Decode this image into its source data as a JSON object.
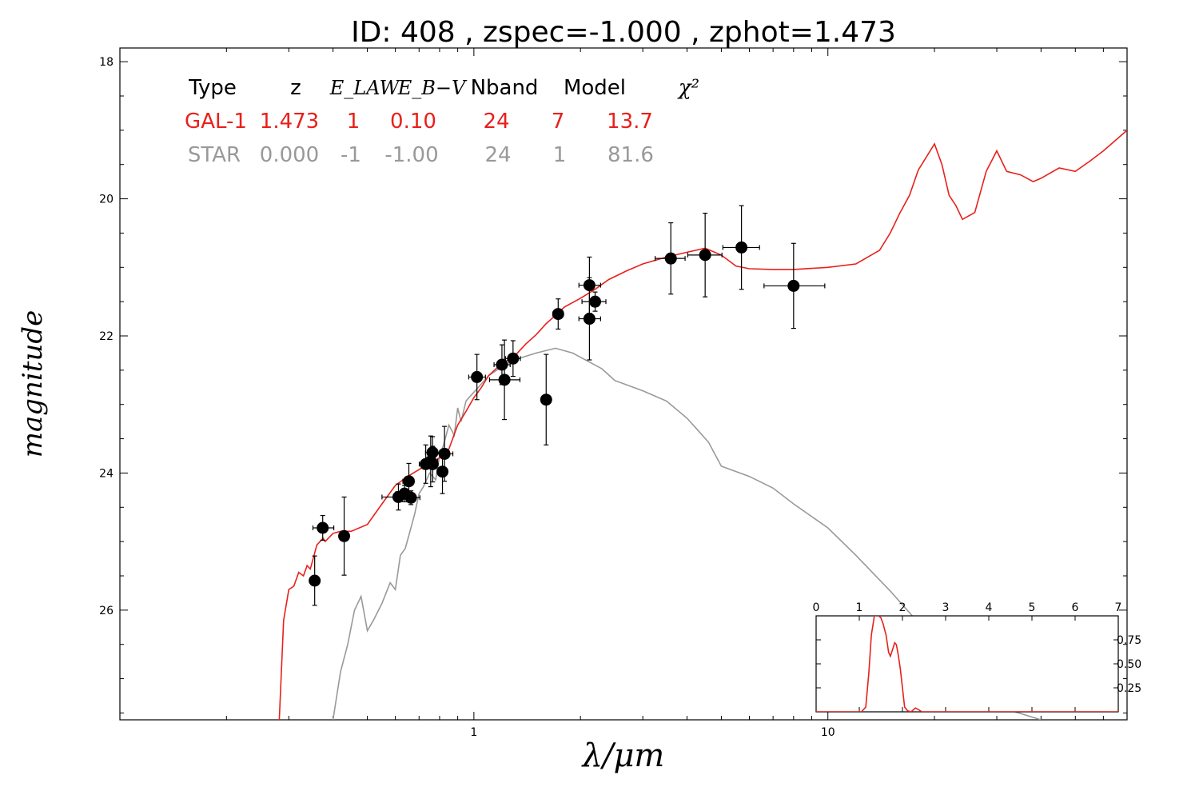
{
  "chart_data": {
    "type": "scatter",
    "title": "ID:  408   , zspec=-1.000 , zphot=1.473",
    "xlabel": "λ/μm",
    "ylabel": "magnitude",
    "x_scale": "log",
    "xlim": [
      0.1,
      70
    ],
    "ylim": [
      27.6,
      17.8
    ],
    "y_inverted": true,
    "x_ticks": [
      1,
      10
    ],
    "x_tick_labels": [
      "1",
      "10"
    ],
    "y_ticks": [
      18,
      20,
      22,
      24,
      26
    ],
    "y_tick_labels": [
      "18",
      "20",
      "22",
      "24",
      "26"
    ],
    "legend_table": {
      "headers": [
        "Type",
        "z",
        "E_LAW",
        "E_B−V",
        "Nband",
        "Model",
        "χ²"
      ],
      "rows": [
        {
          "type": "GAL-1",
          "z": "1.473",
          "elaw": "1",
          "ebv": "0.10",
          "nband": "24",
          "model": "7",
          "chi2": "13.7",
          "color": "#e8201b"
        },
        {
          "type": "STAR",
          "z": "0.000",
          "elaw": "-1",
          "ebv": "-1.00",
          "nband": "24",
          "model": "1",
          "chi2": "81.6",
          "color": "#999999"
        }
      ]
    },
    "points": [
      {
        "x": 0.355,
        "y": 25.57,
        "xerr_lo": 0.01,
        "xerr_hi": 0.01,
        "yerr": 0.36
      },
      {
        "x": 0.374,
        "y": 24.8,
        "xerr_lo": 0.023,
        "xerr_hi": 0.028,
        "yerr": 0.18
      },
      {
        "x": 0.43,
        "y": 24.92,
        "xerr_lo": 0.003,
        "xerr_hi": 0.003,
        "yerr": 0.57
      },
      {
        "x": 0.612,
        "y": 24.35,
        "xerr_lo": 0.062,
        "xerr_hi": 0.027,
        "yerr": 0.19
      },
      {
        "x": 0.637,
        "y": 24.3,
        "xerr_lo": 0.035,
        "xerr_hi": 0.03,
        "yerr": 0.12
      },
      {
        "x": 0.655,
        "y": 24.12,
        "xerr_lo": 0.025,
        "xerr_hi": 0.02,
        "yerr": 0.26
      },
      {
        "x": 0.664,
        "y": 24.36,
        "xerr_lo": 0.041,
        "xerr_hi": 0.04,
        "yerr": 0.1
      },
      {
        "x": 0.731,
        "y": 23.87,
        "xerr_lo": 0.03,
        "xerr_hi": 0.031,
        "yerr": 0.28
      },
      {
        "x": 0.755,
        "y": 23.83,
        "xerr_lo": 0.035,
        "xerr_hi": 0.035,
        "yerr": 0.37
      },
      {
        "x": 0.764,
        "y": 23.7,
        "xerr_lo": 0.034,
        "xerr_hi": 0.036,
        "yerr": 0.23
      },
      {
        "x": 0.765,
        "y": 23.87,
        "xerr_lo": 0.025,
        "xerr_hi": 0.025,
        "yerr": 0.26
      },
      {
        "x": 0.815,
        "y": 23.98,
        "xerr_lo": 0.01,
        "xerr_hi": 0.01,
        "yerr": 0.32
      },
      {
        "x": 0.826,
        "y": 23.72,
        "xerr_lo": 0.051,
        "xerr_hi": 0.046,
        "yerr": 0.4
      },
      {
        "x": 1.02,
        "y": 22.6,
        "xerr_lo": 0.053,
        "xerr_hi": 0.058,
        "yerr": 0.33
      },
      {
        "x": 1.2,
        "y": 22.42,
        "xerr_lo": 0.06,
        "xerr_hi": 0.066,
        "yerr": 0.29
      },
      {
        "x": 1.22,
        "y": 22.64,
        "xerr_lo": 0.113,
        "xerr_hi": 0.129,
        "yerr": 0.58
      },
      {
        "x": 1.29,
        "y": 22.33,
        "xerr_lo": 0.062,
        "xerr_hi": 0.063,
        "yerr": 0.26
      },
      {
        "x": 1.6,
        "y": 22.93,
        "xerr_lo": 0.003,
        "xerr_hi": 0.003,
        "yerr": 0.66
      },
      {
        "x": 1.73,
        "y": 21.68,
        "xerr_lo": 0.059,
        "xerr_hi": 0.059,
        "yerr": 0.22
      },
      {
        "x": 2.12,
        "y": 21.26,
        "xerr_lo": 0.14,
        "xerr_hi": 0.16,
        "yerr": 0.41
      },
      {
        "x": 2.12,
        "y": 21.75,
        "xerr_lo": 0.14,
        "xerr_hi": 0.16,
        "yerr": 0.6
      },
      {
        "x": 2.2,
        "y": 21.5,
        "xerr_lo": 0.18,
        "xerr_hi": 0.16,
        "yerr": 0.14
      },
      {
        "x": 3.6,
        "y": 20.87,
        "xerr_lo": 0.35,
        "xerr_hi": 0.35,
        "yerr": 0.52
      },
      {
        "x": 4.5,
        "y": 20.82,
        "xerr_lo": 0.48,
        "xerr_hi": 0.52,
        "yerr": 0.61
      },
      {
        "x": 5.7,
        "y": 20.71,
        "xerr_lo": 0.65,
        "xerr_hi": 0.71,
        "yerr": 0.61
      },
      {
        "x": 8.0,
        "y": 21.27,
        "xerr_lo": 1.4,
        "xerr_hi": 1.8,
        "yerr": 0.62
      }
    ],
    "series": [
      {
        "name": "GAL-1",
        "color": "#e8201b",
        "x": [
          0.282,
          0.29,
          0.3,
          0.31,
          0.32,
          0.33,
          0.338,
          0.345,
          0.36,
          0.375,
          0.38,
          0.4,
          0.42,
          0.45,
          0.5,
          0.55,
          0.6,
          0.65,
          0.7,
          0.75,
          0.8,
          0.85,
          0.9,
          0.95,
          1.0,
          1.05,
          1.1,
          1.2,
          1.3,
          1.4,
          1.5,
          1.6,
          1.7,
          1.8,
          2.0,
          2.2,
          2.4,
          2.7,
          3.0,
          3.5,
          4.0,
          4.5,
          5.0,
          5.5,
          6.0,
          7.0,
          8.0,
          10.0,
          12.0,
          14.0,
          15.0,
          16.0,
          17.0,
          18.0,
          20.0,
          21.0,
          22.0,
          23.0,
          24.0,
          26.0,
          28.0,
          30.0,
          32.0,
          35.0,
          38.0,
          40.0,
          45.0,
          50.0,
          55.0,
          60.0,
          70.0
        ],
        "y": [
          27.6,
          26.15,
          25.7,
          25.65,
          25.45,
          25.5,
          25.35,
          25.4,
          25.05,
          24.95,
          25.0,
          24.88,
          24.85,
          24.85,
          24.75,
          24.45,
          24.18,
          24.05,
          23.95,
          23.85,
          23.78,
          23.65,
          23.3,
          23.1,
          22.9,
          22.75,
          22.58,
          22.4,
          22.3,
          22.12,
          21.98,
          21.82,
          21.7,
          21.58,
          21.45,
          21.32,
          21.18,
          21.05,
          20.95,
          20.85,
          20.78,
          20.72,
          20.82,
          20.98,
          21.02,
          21.03,
          21.03,
          21.0,
          20.95,
          20.75,
          20.5,
          20.2,
          19.95,
          19.58,
          19.2,
          19.5,
          19.95,
          20.1,
          20.3,
          20.2,
          19.6,
          19.3,
          19.6,
          19.65,
          19.75,
          19.7,
          19.55,
          19.6,
          19.45,
          19.3,
          19.0
        ]
      },
      {
        "name": "STAR",
        "color": "#999999",
        "x": [
          0.4,
          0.42,
          0.44,
          0.46,
          0.48,
          0.5,
          0.52,
          0.55,
          0.58,
          0.6,
          0.62,
          0.64,
          0.66,
          0.68,
          0.7,
          0.72,
          0.75,
          0.78,
          0.8,
          0.82,
          0.85,
          0.88,
          0.9,
          0.92,
          0.95,
          1.0,
          1.05,
          1.1,
          1.2,
          1.3,
          1.5,
          1.7,
          1.9,
          2.1,
          2.3,
          2.5,
          3.0,
          3.5,
          4.0,
          4.3,
          4.6,
          5.0,
          6.0,
          7.0,
          8.0,
          10.0,
          12.0,
          15.0,
          20.0,
          25.0,
          30.0,
          40.0
        ],
        "y": [
          27.6,
          26.9,
          26.5,
          26.0,
          25.8,
          26.3,
          26.15,
          25.9,
          25.6,
          25.7,
          25.2,
          25.1,
          24.85,
          24.6,
          24.3,
          24.2,
          24.0,
          24.1,
          23.75,
          23.6,
          23.3,
          23.45,
          23.05,
          23.25,
          22.95,
          22.82,
          22.7,
          22.58,
          22.45,
          22.35,
          22.25,
          22.18,
          22.25,
          22.37,
          22.48,
          22.65,
          22.8,
          22.95,
          23.2,
          23.38,
          23.55,
          23.9,
          24.05,
          24.22,
          24.45,
          24.8,
          25.2,
          25.72,
          26.45,
          27.0,
          27.4,
          27.6
        ]
      }
    ],
    "inset": {
      "type": "line",
      "xlim": [
        0,
        7
      ],
      "ylim": [
        0,
        1.0
      ],
      "x_ticks": [
        0,
        1,
        2,
        3,
        4,
        5,
        6,
        7
      ],
      "x_tick_labels": [
        "0",
        "1",
        "2",
        "3",
        "4",
        "5",
        "6",
        "7"
      ],
      "y_ticks": [
        0.25,
        0.5,
        0.75
      ],
      "y_tick_labels": [
        "0.25",
        "0.50",
        "0.75"
      ],
      "color": "#e8201b",
      "x": [
        0,
        1.05,
        1.15,
        1.22,
        1.28,
        1.35,
        1.42,
        1.5,
        1.55,
        1.62,
        1.68,
        1.72,
        1.78,
        1.82,
        1.86,
        1.9,
        1.95,
        2.0,
        2.05,
        2.12,
        2.2,
        2.3,
        2.38,
        2.45,
        3.0,
        7.0
      ],
      "y": [
        0,
        0,
        0.05,
        0.4,
        0.8,
        1.0,
        1.01,
        0.98,
        0.92,
        0.8,
        0.62,
        0.58,
        0.66,
        0.72,
        0.7,
        0.6,
        0.45,
        0.25,
        0.05,
        0.01,
        0.0,
        0.04,
        0.02,
        0.0,
        0.0,
        0.0
      ]
    }
  }
}
